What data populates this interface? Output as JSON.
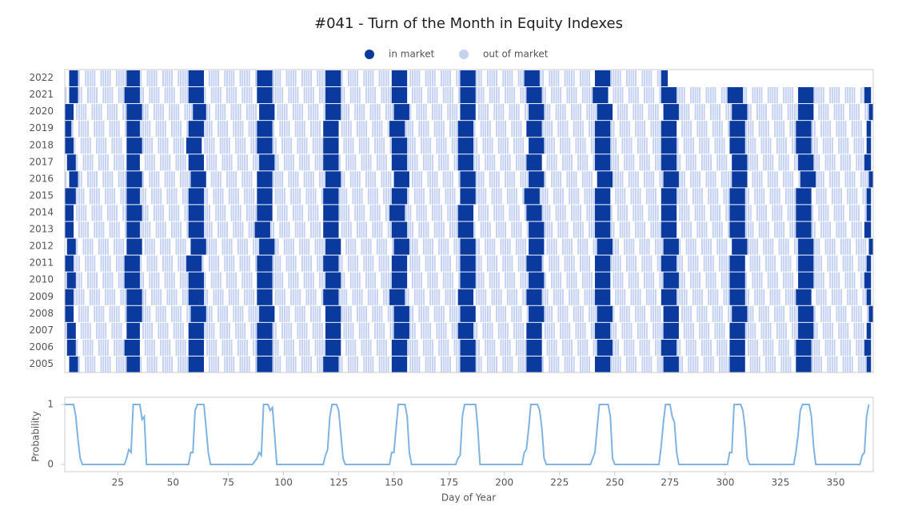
{
  "chart_data": [
    {
      "type": "heatmap",
      "title": "#041 - Turn of the Month in Equity Indexes",
      "series": [
        {
          "name": "in market",
          "color": "#0a3a9e"
        },
        {
          "name": "out of market",
          "color": "#c4d1f0"
        }
      ],
      "categories": [
        "2022",
        "2021",
        "2020",
        "2019",
        "2018",
        "2017",
        "2016",
        "2015",
        "2014",
        "2013",
        "2012",
        "2011",
        "2010",
        "2009",
        "2008",
        "2007",
        "2006",
        "2005"
      ],
      "row_end": [
        273,
        365,
        366,
        365,
        365,
        365,
        366,
        365,
        365,
        365,
        366,
        365,
        365,
        365,
        366,
        365,
        365,
        365
      ],
      "xlim": [
        1,
        367
      ],
      "in_market": [
        [
          [
            3,
            6
          ],
          [
            29,
            34
          ],
          [
            57,
            63
          ],
          [
            88,
            94
          ],
          [
            119,
            125
          ],
          [
            149,
            155
          ],
          [
            180,
            186
          ],
          [
            209,
            215
          ],
          [
            241,
            247
          ],
          [
            271,
            273
          ]
        ],
        [
          [
            3,
            6
          ],
          [
            28,
            34
          ],
          [
            57,
            63
          ],
          [
            88,
            94
          ],
          [
            119,
            125
          ],
          [
            149,
            155
          ],
          [
            180,
            186
          ],
          [
            210,
            216
          ],
          [
            240,
            246
          ],
          [
            271,
            277
          ],
          [
            301,
            307
          ],
          [
            333,
            339
          ],
          [
            363,
            365
          ]
        ],
        [
          [
            1,
            4
          ],
          [
            29,
            35
          ],
          [
            59,
            64
          ],
          [
            89,
            95
          ],
          [
            119,
            125
          ],
          [
            150,
            156
          ],
          [
            180,
            186
          ],
          [
            211,
            217
          ],
          [
            242,
            248
          ],
          [
            272,
            278
          ],
          [
            303,
            309
          ],
          [
            333,
            339
          ],
          [
            365,
            366
          ]
        ],
        [
          [
            1,
            3
          ],
          [
            29,
            34
          ],
          [
            57,
            63
          ],
          [
            88,
            94
          ],
          [
            118,
            124
          ],
          [
            148,
            154
          ],
          [
            179,
            185
          ],
          [
            210,
            216
          ],
          [
            241,
            247
          ],
          [
            271,
            277
          ],
          [
            302,
            308
          ],
          [
            332,
            338
          ],
          [
            364,
            365
          ]
        ],
        [
          [
            1,
            4
          ],
          [
            29,
            35
          ],
          [
            56,
            62
          ],
          [
            88,
            94
          ],
          [
            118,
            124
          ],
          [
            149,
            155
          ],
          [
            179,
            185
          ],
          [
            211,
            217
          ],
          [
            241,
            247
          ],
          [
            271,
            277
          ],
          [
            302,
            308
          ],
          [
            332,
            338
          ],
          [
            364,
            365
          ]
        ],
        [
          [
            2,
            5
          ],
          [
            29,
            34
          ],
          [
            57,
            63
          ],
          [
            89,
            95
          ],
          [
            118,
            124
          ],
          [
            149,
            155
          ],
          [
            179,
            185
          ],
          [
            210,
            216
          ],
          [
            241,
            247
          ],
          [
            271,
            277
          ],
          [
            303,
            309
          ],
          [
            333,
            339
          ],
          [
            363,
            365
          ]
        ],
        [
          [
            3,
            6
          ],
          [
            29,
            35
          ],
          [
            58,
            64
          ],
          [
            88,
            94
          ],
          [
            119,
            125
          ],
          [
            150,
            156
          ],
          [
            180,
            186
          ],
          [
            211,
            217
          ],
          [
            242,
            248
          ],
          [
            272,
            278
          ],
          [
            303,
            309
          ],
          [
            334,
            340
          ],
          [
            365,
            366
          ]
        ],
        [
          [
            1,
            5
          ],
          [
            29,
            34
          ],
          [
            57,
            63
          ],
          [
            88,
            94
          ],
          [
            118,
            124
          ],
          [
            149,
            155
          ],
          [
            180,
            186
          ],
          [
            209,
            215
          ],
          [
            241,
            247
          ],
          [
            271,
            277
          ],
          [
            302,
            308
          ],
          [
            332,
            338
          ],
          [
            364,
            365
          ]
        ],
        [
          [
            1,
            4
          ],
          [
            29,
            35
          ],
          [
            57,
            63
          ],
          [
            88,
            94
          ],
          [
            118,
            124
          ],
          [
            148,
            154
          ],
          [
            179,
            185
          ],
          [
            210,
            216
          ],
          [
            241,
            247
          ],
          [
            271,
            277
          ],
          [
            302,
            308
          ],
          [
            332,
            338
          ],
          [
            364,
            365
          ]
        ],
        [
          [
            1,
            4
          ],
          [
            29,
            34
          ],
          [
            57,
            63
          ],
          [
            87,
            93
          ],
          [
            118,
            124
          ],
          [
            149,
            155
          ],
          [
            179,
            185
          ],
          [
            211,
            217
          ],
          [
            241,
            247
          ],
          [
            271,
            277
          ],
          [
            302,
            308
          ],
          [
            332,
            338
          ],
          [
            363,
            365
          ]
        ],
        [
          [
            2,
            5
          ],
          [
            29,
            35
          ],
          [
            58,
            64
          ],
          [
            89,
            95
          ],
          [
            119,
            125
          ],
          [
            150,
            156
          ],
          [
            180,
            186
          ],
          [
            211,
            217
          ],
          [
            242,
            248
          ],
          [
            272,
            278
          ],
          [
            303,
            309
          ],
          [
            333,
            339
          ],
          [
            365,
            366
          ]
        ],
        [
          [
            1,
            4
          ],
          [
            28,
            34
          ],
          [
            56,
            62
          ],
          [
            88,
            94
          ],
          [
            118,
            124
          ],
          [
            149,
            155
          ],
          [
            180,
            186
          ],
          [
            210,
            216
          ],
          [
            241,
            247
          ],
          [
            271,
            277
          ],
          [
            302,
            308
          ],
          [
            333,
            339
          ],
          [
            364,
            365
          ]
        ],
        [
          [
            2,
            5
          ],
          [
            28,
            34
          ],
          [
            57,
            63
          ],
          [
            88,
            94
          ],
          [
            119,
            125
          ],
          [
            149,
            155
          ],
          [
            180,
            186
          ],
          [
            211,
            217
          ],
          [
            241,
            247
          ],
          [
            272,
            278
          ],
          [
            302,
            308
          ],
          [
            333,
            339
          ],
          [
            363,
            365
          ]
        ],
        [
          [
            1,
            4
          ],
          [
            29,
            35
          ],
          [
            57,
            63
          ],
          [
            88,
            94
          ],
          [
            118,
            124
          ],
          [
            148,
            154
          ],
          [
            179,
            185
          ],
          [
            210,
            216
          ],
          [
            241,
            247
          ],
          [
            271,
            277
          ],
          [
            302,
            308
          ],
          [
            332,
            338
          ],
          [
            364,
            365
          ]
        ],
        [
          [
            1,
            4
          ],
          [
            29,
            35
          ],
          [
            58,
            64
          ],
          [
            89,
            95
          ],
          [
            119,
            125
          ],
          [
            150,
            156
          ],
          [
            180,
            186
          ],
          [
            211,
            217
          ],
          [
            242,
            248
          ],
          [
            272,
            278
          ],
          [
            303,
            309
          ],
          [
            333,
            339
          ],
          [
            365,
            366
          ]
        ],
        [
          [
            2,
            5
          ],
          [
            29,
            34
          ],
          [
            57,
            63
          ],
          [
            88,
            94
          ],
          [
            119,
            125
          ],
          [
            150,
            156
          ],
          [
            179,
            185
          ],
          [
            210,
            216
          ],
          [
            241,
            247
          ],
          [
            272,
            278
          ],
          [
            302,
            308
          ],
          [
            333,
            339
          ],
          [
            364,
            365
          ]
        ],
        [
          [
            2,
            5
          ],
          [
            28,
            34
          ],
          [
            57,
            63
          ],
          [
            88,
            94
          ],
          [
            119,
            125
          ],
          [
            149,
            155
          ],
          [
            180,
            186
          ],
          [
            210,
            216
          ],
          [
            242,
            248
          ],
          [
            271,
            277
          ],
          [
            302,
            308
          ],
          [
            332,
            338
          ],
          [
            363,
            365
          ]
        ],
        [
          [
            3,
            6
          ],
          [
            29,
            34
          ],
          [
            57,
            63
          ],
          [
            88,
            94
          ],
          [
            118,
            124
          ],
          [
            149,
            155
          ],
          [
            180,
            186
          ],
          [
            210,
            216
          ],
          [
            241,
            247
          ],
          [
            272,
            278
          ],
          [
            302,
            308
          ],
          [
            332,
            338
          ],
          [
            364,
            365
          ]
        ]
      ]
    },
    {
      "type": "line",
      "xlabel": "Day of Year",
      "ylabel": "Probability",
      "color": "#7fb3e3",
      "xlim": [
        1,
        367
      ],
      "ylim": [
        -0.12,
        1.12
      ],
      "xticks": [
        25,
        50,
        75,
        100,
        125,
        150,
        175,
        200,
        225,
        250,
        275,
        300,
        325,
        350
      ],
      "yticks": [
        0,
        1
      ],
      "x": [
        1,
        5,
        6,
        7,
        8,
        9,
        28,
        29,
        30,
        31,
        32,
        35,
        36,
        37,
        38,
        57,
        58,
        59,
        60,
        61,
        64,
        65,
        66,
        67,
        86,
        88,
        89,
        90,
        91,
        93,
        94,
        95,
        96,
        97,
        118,
        119,
        120,
        121,
        122,
        124,
        125,
        126,
        127,
        128,
        148,
        149,
        150,
        151,
        152,
        155,
        156,
        157,
        158,
        178,
        179,
        180,
        181,
        182,
        187,
        188,
        189,
        208,
        209,
        210,
        211,
        212,
        215,
        216,
        217,
        218,
        219,
        239,
        241,
        242,
        243,
        247,
        248,
        249,
        250,
        270,
        271,
        272,
        273,
        275,
        276,
        277,
        278,
        279,
        301,
        302,
        303,
        304,
        307,
        308,
        309,
        310,
        311,
        331,
        332,
        333,
        334,
        335,
        338,
        339,
        340,
        341,
        361,
        362,
        363,
        364,
        365
      ],
      "values": [
        1,
        1,
        0.8,
        0.4,
        0.1,
        0,
        0,
        0.1,
        0.25,
        0.2,
        1,
        1,
        0.75,
        0.8,
        0,
        0,
        0.2,
        0.2,
        0.9,
        1,
        1,
        0.6,
        0.2,
        0,
        0,
        0.1,
        0.2,
        0.15,
        1,
        1,
        0.9,
        0.95,
        0.5,
        0,
        0,
        0.15,
        0.25,
        0.8,
        1,
        1,
        0.9,
        0.5,
        0.1,
        0,
        0,
        0.2,
        0.2,
        0.6,
        1,
        1,
        0.8,
        0.2,
        0,
        0,
        0.1,
        0.15,
        0.8,
        1,
        1,
        0.6,
        0,
        0,
        0.2,
        0.25,
        0.6,
        1,
        1,
        0.9,
        0.6,
        0.1,
        0,
        0,
        0.2,
        0.6,
        1,
        1,
        0.8,
        0.1,
        0,
        0,
        0.3,
        0.7,
        1,
        1,
        0.8,
        0.7,
        0.2,
        0,
        0,
        0.2,
        0.2,
        1,
        1,
        0.9,
        0.6,
        0.1,
        0,
        0,
        0.2,
        0.5,
        0.9,
        1,
        1,
        0.8,
        0.3,
        0,
        0,
        0.15,
        0.2,
        0.8,
        1
      ]
    }
  ]
}
